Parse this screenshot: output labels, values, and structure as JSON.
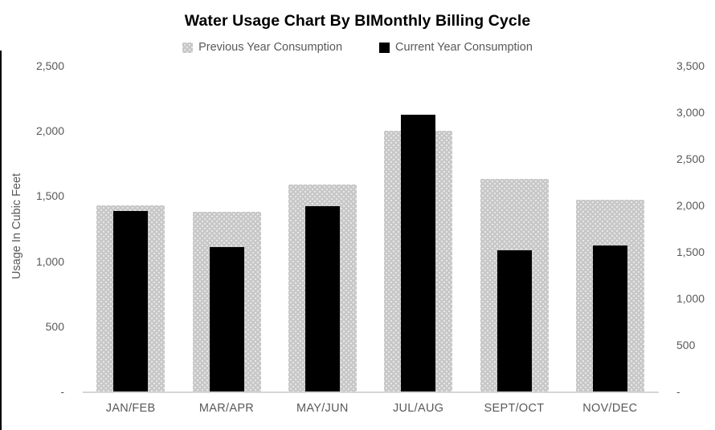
{
  "chart_data": {
    "type": "bar",
    "title": "Water Usage Chart By BIMonthly Billing Cycle",
    "categories": [
      "JAN/FEB",
      "MAR/APR",
      "MAY/JUN",
      "JUL/AUG",
      "SEPT/OCT",
      "NOV/DEC"
    ],
    "series": [
      {
        "name": "Previous Year Consumption",
        "axis": "left",
        "values": [
          1430,
          1380,
          1590,
          2000,
          1630,
          1470
        ],
        "color": "#C8C8C8",
        "pattern_dot_color": "#EAEAEA",
        "style": "dotted-pattern"
      },
      {
        "name": "Current Year Consumption",
        "axis": "right",
        "values": [
          1940,
          1555,
          1990,
          2975,
          1515,
          1565
        ],
        "color": "#000000",
        "style": "solid"
      }
    ],
    "left_axis": {
      "label": "Usage In Cubic Feet",
      "min": 0,
      "max": 2500,
      "step": 500,
      "tick_labels": [
        "-",
        "500",
        "1,000",
        "1,500",
        "2,000",
        "2,500"
      ]
    },
    "right_axis": {
      "label": "",
      "min": 0,
      "max": 3500,
      "step": 500,
      "tick_labels": [
        "-",
        "500",
        "1,000",
        "1,500",
        "2,000",
        "2,500",
        "3,000",
        "3,500"
      ]
    },
    "legend_position": "top",
    "grid": false,
    "colors": {
      "text": "#595959",
      "axis_line": "#D6D6D6",
      "title": "#000000"
    }
  }
}
